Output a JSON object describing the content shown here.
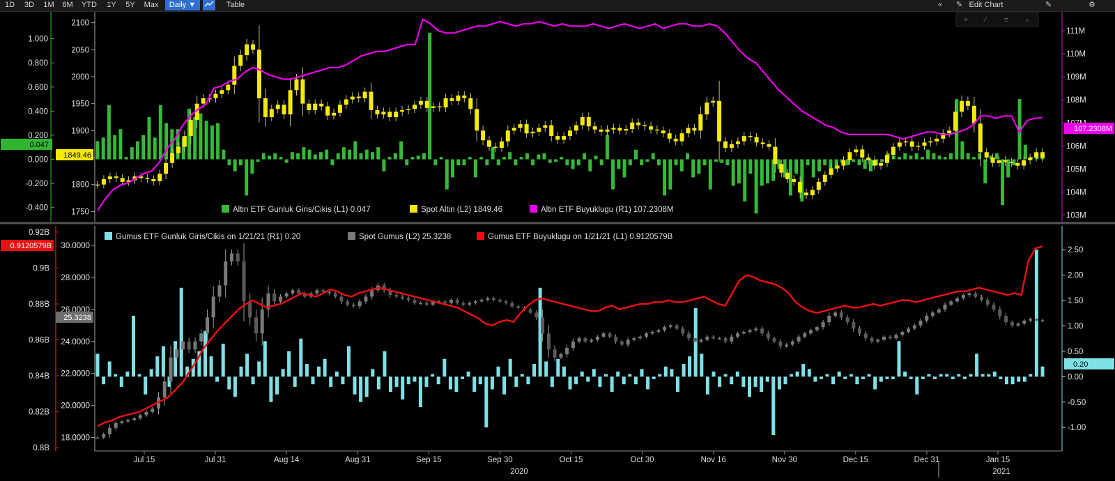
{
  "toolbar": {
    "ranges": [
      "1D",
      "3D",
      "1M",
      "6M",
      "YTD",
      "1Y",
      "5Y",
      "Max"
    ],
    "interval": "Daily ▼",
    "table": "Table",
    "edit_chart": "Edit Chart",
    "collapse": "«",
    "edit_icon_glyph": "✎",
    "settings_glyph": "⚙",
    "panel_glyph": "✎"
  },
  "x_axis": {
    "tick_labels": [
      "Jul 15",
      "Jul 31",
      "Aug 14",
      "Aug 31",
      "Sep 15",
      "Sep 30",
      "Oct 15",
      "Oct 30",
      "Nov 16",
      "Nov 30",
      "Dec 15",
      "Dec 31",
      "Jan 15"
    ],
    "year_labels": [
      "2020",
      "2021"
    ]
  },
  "colors": {
    "gold_flow": "#35b936",
    "gold_price": "#f5e90a",
    "gold_size": "#ee00ee",
    "silver_flow": "#7fe0e6",
    "silver_price": "#8a8a8a",
    "silver_size": "#e81010",
    "left_axis_top": "#39c43a",
    "right_axis_top": "#cc22cc",
    "left_axis_bottom": "#cc1111",
    "right_axis_bottom": "#7fe0e6"
  },
  "chart_data": [
    {
      "type": "bar",
      "name": "upper",
      "legend": [
        {
          "label": "Altin ETF Gunluk Giris/Cikis (L1) 0.047",
          "color": "#35b936"
        },
        {
          "label": "Spot Altin (L2) 1849.46",
          "color": "#f5e90a"
        },
        {
          "label": "Altin ETF Buyuklugu (R1) 107.2308M",
          "color": "#ee00ee"
        }
      ],
      "axis_flow": {
        "ticks": [
          "1.000",
          "0.800",
          "0.600",
          "0.400",
          "0.200",
          "0.000",
          "-0.200",
          "-0.400"
        ],
        "ylim": [
          -0.5,
          1.2
        ]
      },
      "axis_price": {
        "ticks": [
          "2100",
          "2050",
          "2000",
          "1950",
          "1900",
          "1850",
          "1800",
          "1750"
        ],
        "ylim": [
          1735,
          2115
        ]
      },
      "axis_size": {
        "ticks": [
          "111M",
          "110M",
          "109M",
          "108M",
          "107M",
          "106M",
          "105M",
          "104M",
          "103M"
        ],
        "ylim": [
          102.8,
          111.7
        ]
      },
      "last_labels": {
        "flow": "0.047",
        "price": "1849.46",
        "size": "107.2308M"
      },
      "flow_values": [
        0.15,
        0.18,
        0.45,
        0.2,
        0.25,
        0.02,
        0.1,
        0.15,
        0.2,
        0.35,
        0.18,
        0.45,
        0.3,
        0.25,
        0.25,
        0.18,
        0.42,
        0.35,
        0.38,
        0.32,
        0.28,
        0.3,
        0.08,
        -0.05,
        -0.1,
        -0.05,
        -0.3,
        -0.12,
        -0.02,
        0.05,
        0.03,
        0.05,
        0.02,
        -0.03,
        0.06,
        0.05,
        0.1,
        0.08,
        0.04,
        0.06,
        0.08,
        -0.05,
        0.05,
        0.1,
        0.08,
        0.15,
        0.05,
        0.08,
        0.06,
        0.1,
        -0.1,
        0.02,
        0.05,
        0.15,
        -0.05,
        0.02,
        0.03,
        0.05,
        1.05,
        -0.05,
        0.02,
        -0.25,
        -0.15,
        -0.05,
        -0.05,
        0.02,
        -0.15,
        0.02,
        -0.05,
        0.1,
        -0.05,
        0.02,
        0.06,
        -0.05,
        0.02,
        0.05,
        -0.05,
        0.04,
        0.05,
        -0.03,
        -0.02,
        0.02,
        -0.05,
        -0.08,
        -0.05,
        0.05,
        -0.1,
        0.03,
        -0.05,
        0.2,
        -0.25,
        -0.08,
        -0.15,
        -0.05,
        0.08,
        -0.05,
        -0.02,
        0.05,
        -0.05,
        -0.3,
        -0.25,
        -0.05,
        -0.1,
        0.05,
        -0.15,
        -0.12,
        -0.05,
        -0.25,
        -0.02,
        -0.03,
        -0.05,
        -0.22,
        -0.2,
        -0.35,
        -0.12,
        -0.45,
        -0.22,
        -0.2,
        -0.18,
        -0.08,
        -0.15,
        -0.3,
        -0.12,
        -0.35,
        -0.05,
        -0.15,
        -0.1,
        -0.05,
        -0.12,
        -0.08,
        -0.03,
        -0.05,
        -0.02,
        -0.05,
        -0.08,
        -0.1,
        -0.05,
        -0.02,
        0.05,
        0.03,
        0.02,
        0.05,
        0.03,
        0.05,
        0.02,
        0.08,
        0.05,
        0.03,
        0.02,
        0.05,
        0.5,
        0.15,
        0.05,
        0.02,
        0.05,
        -0.2,
        0.03,
        0.05,
        -0.38,
        -0.15,
        -0.05,
        0.5,
        0.12,
        0.02,
        0.05,
        0.047
      ],
      "price_values": [
        1800,
        1810,
        1815,
        1812,
        1805,
        1808,
        1815,
        1812,
        1810,
        1806,
        1820,
        1840,
        1858,
        1870,
        1890,
        1920,
        1950,
        1960,
        1960,
        1968,
        1975,
        1985,
        2020,
        2040,
        2060,
        2050,
        1960,
        1925,
        1940,
        1948,
        1930,
        1975,
        1995,
        1950,
        1938,
        1950,
        1945,
        1928,
        1933,
        1948,
        1958,
        1963,
        1960,
        1972,
        1938,
        1930,
        1935,
        1925,
        1935,
        1938,
        1940,
        1948,
        1955,
        1942,
        1945,
        1943,
        1960,
        1955,
        1965,
        1960,
        1940,
        1900,
        1882,
        1870,
        1868,
        1880,
        1900,
        1905,
        1912,
        1895,
        1898,
        1905,
        1910,
        1890,
        1883,
        1890,
        1900,
        1910,
        1925,
        1908,
        1902,
        1898,
        1902,
        1905,
        1900,
        1903,
        1915,
        1910,
        1908,
        1902,
        1900,
        1895,
        1885,
        1880,
        1895,
        1905,
        1900,
        1930,
        1952,
        1955,
        1880,
        1868,
        1875,
        1880,
        1890,
        1888,
        1878,
        1875,
        1870,
        1838,
        1822,
        1810,
        1805,
        1785,
        1780,
        1790,
        1805,
        1818,
        1830,
        1835,
        1845,
        1860,
        1865,
        1850,
        1845,
        1835,
        1840,
        1855,
        1870,
        1878,
        1880,
        1870,
        1872,
        1878,
        1880,
        1885,
        1895,
        1900,
        1935,
        1955,
        1946,
        1913,
        1860,
        1850,
        1840,
        1845,
        1842,
        1840,
        1835,
        1845,
        1850,
        1860,
        1849.46
      ],
      "size_values": [
        103.2,
        103.7,
        104.1,
        104.3,
        104.4,
        104.6,
        104.8,
        104.9,
        105.3,
        105.9,
        106.3,
        106.9,
        107.3,
        107.6,
        107.8,
        108.5,
        108.6,
        108.8,
        108.9,
        109.2,
        109.4,
        109.3,
        109.1,
        109.0,
        108.9,
        108.9,
        109.0,
        109.1,
        109.2,
        109.3,
        109.4,
        109.4,
        109.5,
        109.7,
        109.9,
        110.0,
        110.1,
        110.1,
        110.2,
        110.3,
        110.4,
        110.4,
        111.5,
        111.3,
        111.0,
        110.9,
        110.9,
        111.0,
        111.1,
        111.2,
        111.2,
        111.3,
        111.4,
        111.3,
        111.2,
        111.3,
        111.3,
        111.4,
        111.3,
        111.2,
        111.3,
        111.2,
        111.2,
        111.2,
        111.3,
        111.2,
        111.1,
        111.2,
        111.3,
        111.2,
        111.1,
        111.2,
        111.3,
        111.1,
        111.2,
        111.3,
        111.3,
        111.2,
        111.2,
        111.3,
        111.2,
        110.9,
        110.5,
        110.1,
        109.8,
        109.6,
        109.2,
        108.8,
        108.4,
        108.1,
        107.8,
        107.5,
        107.3,
        107.1,
        106.9,
        106.8,
        106.6,
        106.5,
        106.5,
        106.5,
        106.5,
        106.5,
        106.5,
        106.4,
        106.3,
        106.4,
        106.5,
        106.6,
        106.6,
        106.5,
        106.5,
        106.6,
        106.7,
        106.9,
        107.3,
        107.3,
        107.2,
        107.3,
        107.3,
        106.6,
        107.1,
        107.2,
        107.23
      ]
    },
    {
      "type": "bar",
      "name": "lower",
      "legend": [
        {
          "label": "Gumus ETF Gunluk Giris/Cikis on 1/21/21 (R1) 0.20",
          "color": "#7fe0e6"
        },
        {
          "label": "Spot Gumus (L2) 25.3238",
          "color": "#7a7a7a"
        },
        {
          "label": "Gumus ETF Buyuklugu on 1/21/21 (L1) 0.9120579B",
          "color": "#e81010"
        }
      ],
      "axis_size": {
        "ticks": [
          "0.92B",
          "0.9B",
          "0.88B",
          "0.86B",
          "0.84B",
          "0.82B",
          "0.8B"
        ],
        "ylim": [
          0.7985,
          0.9215
        ]
      },
      "axis_price": {
        "ticks": [
          "30.0000",
          "28.0000",
          "26.0000",
          "24.0000",
          "22.0000",
          "20.0000",
          "18.0000"
        ],
        "ylim": [
          17.2,
          31.0
        ]
      },
      "axis_flow": {
        "ticks": [
          "2.50",
          "2.00",
          "1.50",
          "1.00",
          "0.50",
          "0.00",
          "-0.50",
          "-1.00"
        ],
        "ylim": [
          -1.45,
          2.9
        ]
      },
      "last_labels": {
        "size": "0.9120579B",
        "price": "25.3238",
        "flow": "0.20"
      },
      "flow_values": [
        0.45,
        -0.15,
        0.3,
        0.05,
        -0.2,
        0.1,
        1.2,
        0.05,
        -0.35,
        0.15,
        0.4,
        0.6,
        -0.2,
        0.7,
        1.75,
        0.2,
        0.35,
        0.5,
        0.9,
        0.4,
        -0.1,
        0.65,
        -0.25,
        -0.4,
        0.2,
        0.45,
        -0.15,
        0.3,
        0.7,
        -0.5,
        -0.35,
        0.15,
        0.5,
        -0.2,
        0.75,
        0.25,
        -0.15,
        0.2,
        0.35,
        -0.2,
        0.1,
        -0.15,
        0.6,
        -0.35,
        -0.5,
        -0.4,
        0.15,
        -0.25,
        0.5,
        -0.3,
        -0.2,
        -0.45,
        -0.15,
        -0.1,
        -0.6,
        -0.2,
        0.05,
        -0.15,
        0.35,
        -0.25,
        -0.3,
        -0.05,
        0.1,
        -0.3,
        -0.15,
        -1.0,
        -0.25,
        0.2,
        -0.35,
        0.35,
        -0.2,
        0.05,
        -0.15,
        0.25,
        1.75,
        0.3,
        -0.2,
        0.35,
        0.2,
        -0.25,
        -0.15,
        0.1,
        -0.1,
        0.15,
        -0.2,
        0.05,
        -0.3,
        0.1,
        -0.15,
        0.05,
        -0.15,
        0.15,
        -0.25,
        -0.05,
        0.05,
        0.2,
        0.15,
        -0.3,
        0.25,
        0.4,
        1.35,
        0.45,
        -0.35,
        0.1,
        -0.2,
        0.05,
        -0.15,
        0.1,
        -0.2,
        -0.4,
        -0.2,
        -0.3,
        -0.1,
        -1.15,
        -0.25,
        -0.15,
        0.05,
        0.1,
        0.25,
        0.15,
        -0.1,
        -0.05,
        0.05,
        -0.15,
        0.1,
        -0.05,
        0.05,
        -0.15,
        -0.05,
        0.05,
        -0.25,
        -0.1,
        -0.05,
        -0.05,
        0.7,
        0.1,
        -0.05,
        -0.35,
        -0.05,
        0.05,
        -0.05,
        0.05,
        0.05,
        -0.05,
        0.05,
        -0.05,
        0.05,
        0.45,
        0.05,
        0.05,
        0.1,
        -0.05,
        -0.15,
        -0.15,
        -0.1,
        -0.1,
        0.05,
        2.5,
        0.2
      ],
      "price_values": [
        18.0,
        18.2,
        18.6,
        18.9,
        19.0,
        19.1,
        19.2,
        19.4,
        19.6,
        19.8,
        20.5,
        21.5,
        23.0,
        23.5,
        24.0,
        23.5,
        24.0,
        24.5,
        25.5,
        26.8,
        27.5,
        29.0,
        29.5,
        29.0,
        26.5,
        25.5,
        24.5,
        26.0,
        27.0,
        26.5,
        26.8,
        27.0,
        27.2,
        27.0,
        26.8,
        27.0,
        27.2,
        27.1,
        27.0,
        26.8,
        26.5,
        26.3,
        26.2,
        26.5,
        26.8,
        27.2,
        27.5,
        27.2,
        26.9,
        26.8,
        26.7,
        26.6,
        26.4,
        26.4,
        26.3,
        26.5,
        26.5,
        26.4,
        26.6,
        26.4,
        26.3,
        26.4,
        26.5,
        26.6,
        26.7,
        26.6,
        26.5,
        26.4,
        26.2,
        26.1,
        26.0,
        25.8,
        25.5,
        24.5,
        23.5,
        23.0,
        23.2,
        23.6,
        24.0,
        24.2,
        24.0,
        24.1,
        24.3,
        24.5,
        24.3,
        24.0,
        23.8,
        24.1,
        24.2,
        24.3,
        24.5,
        24.6,
        24.7,
        24.9,
        25.0,
        24.8,
        24.5,
        24.2,
        24.0,
        24.1,
        24.3,
        24.2,
        24.2,
        24.0,
        24.3,
        24.5,
        24.6,
        24.7,
        24.8,
        24.5,
        24.2,
        24.0,
        23.7,
        23.8,
        24.0,
        24.3,
        24.5,
        24.7,
        24.9,
        25.2,
        25.6,
        25.8,
        25.5,
        25.2,
        24.8,
        24.5,
        24.2,
        24.0,
        24.1,
        24.3,
        24.2,
        24.4,
        24.6,
        24.8,
        25.0,
        25.3,
        25.6,
        25.8,
        26.0,
        26.3,
        26.5,
        26.7,
        26.9,
        27.0,
        26.8,
        26.6,
        26.3,
        26.0,
        25.6,
        25.2,
        25.0,
        25.1,
        25.3,
        25.4,
        25.3,
        25.32
      ],
      "size_values": [
        0.812,
        0.814,
        0.815,
        0.817,
        0.818,
        0.819,
        0.82,
        0.822,
        0.824,
        0.826,
        0.828,
        0.832,
        0.836,
        0.842,
        0.848,
        0.855,
        0.86,
        0.865,
        0.869,
        0.873,
        0.877,
        0.88,
        0.882,
        0.88,
        0.878,
        0.879,
        0.88,
        0.882,
        0.884,
        0.886,
        0.885,
        0.884,
        0.886,
        0.888,
        0.887,
        0.885,
        0.884,
        0.886,
        0.887,
        0.888,
        0.889,
        0.888,
        0.887,
        0.886,
        0.885,
        0.884,
        0.883,
        0.882,
        0.881,
        0.88,
        0.879,
        0.878,
        0.876,
        0.874,
        0.872,
        0.869,
        0.868,
        0.87,
        0.871,
        0.87,
        0.875,
        0.879,
        0.882,
        0.883,
        0.882,
        0.881,
        0.88,
        0.879,
        0.878,
        0.877,
        0.876,
        0.876,
        0.878,
        0.879,
        0.877,
        0.878,
        0.879,
        0.88,
        0.88,
        0.881,
        0.881,
        0.882,
        0.881,
        0.881,
        0.882,
        0.883,
        0.884,
        0.882,
        0.88,
        0.879,
        0.886,
        0.893,
        0.896,
        0.895,
        0.893,
        0.892,
        0.891,
        0.889,
        0.886,
        0.881,
        0.878,
        0.876,
        0.875,
        0.876,
        0.877,
        0.878,
        0.879,
        0.878,
        0.878,
        0.879,
        0.88,
        0.879,
        0.88,
        0.881,
        0.882,
        0.882,
        0.881,
        0.882,
        0.883,
        0.884,
        0.885,
        0.886,
        0.887,
        0.887,
        0.888,
        0.889,
        0.888,
        0.887,
        0.886,
        0.885,
        0.886,
        0.885,
        0.904,
        0.911,
        0.912
      ]
    }
  ]
}
